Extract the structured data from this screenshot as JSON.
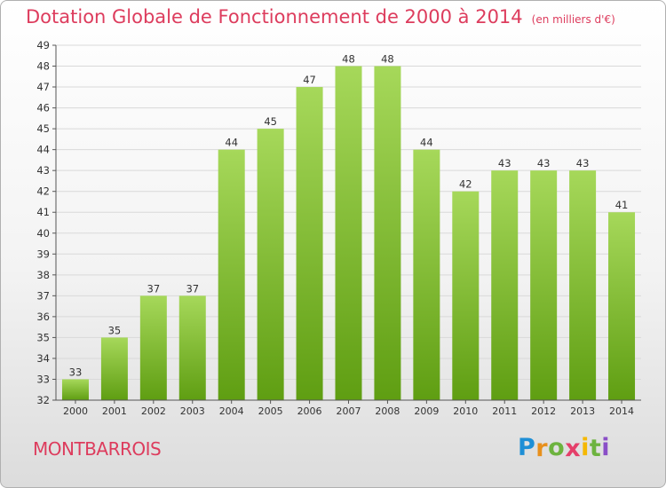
{
  "title": "Dotation Globale de Fonctionnement de 2000 à 2014",
  "subtitle": "(en milliers d'€)",
  "commune": "MONTBARROIS",
  "logo": {
    "letters": [
      "P",
      "r",
      "o",
      "x",
      "i",
      "t",
      "i"
    ],
    "colors": [
      "#1e8fd6",
      "#e8901c",
      "#6db33f",
      "#e53f6a",
      "#f5b800",
      "#6db33f",
      "#8a4fc7"
    ]
  },
  "colors": {
    "accent": "#dd3c5d",
    "bar_light": "#a6d85a",
    "bar_dark": "#5f9e12"
  },
  "chart_data": {
    "type": "bar",
    "title": "Dotation Globale de Fonctionnement de 2000 à 2014",
    "subtitle": "(en milliers d'€)",
    "categories": [
      "2000",
      "2001",
      "2002",
      "2003",
      "2004",
      "2005",
      "2006",
      "2007",
      "2008",
      "2009",
      "2010",
      "2011",
      "2012",
      "2013",
      "2014"
    ],
    "values": [
      33,
      35,
      37,
      37,
      44,
      45,
      47,
      48,
      48,
      44,
      42,
      43,
      43,
      43,
      41
    ],
    "ylim": [
      32,
      49
    ],
    "yticks": [
      32,
      33,
      34,
      35,
      36,
      37,
      38,
      39,
      40,
      41,
      42,
      43,
      44,
      45,
      46,
      47,
      48,
      49
    ],
    "grid": true,
    "xlabel": "",
    "ylabel": ""
  }
}
